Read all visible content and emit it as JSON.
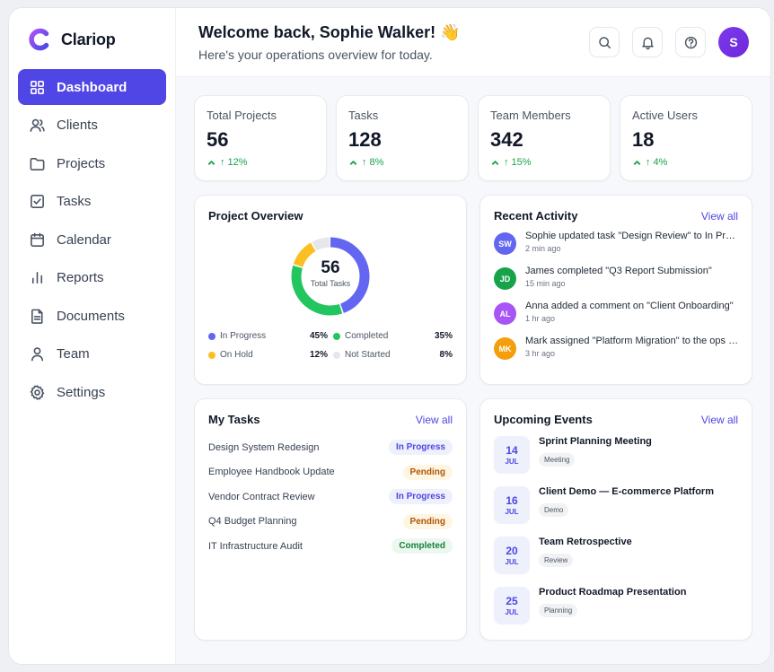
{
  "brand": {
    "name": "Clariop"
  },
  "sidebar": {
    "items": [
      {
        "label": "Dashboard",
        "icon": "grid-icon"
      },
      {
        "label": "Clients",
        "icon": "users-icon"
      },
      {
        "label": "Projects",
        "icon": "folder-icon"
      },
      {
        "label": "Tasks",
        "icon": "checkbox-icon"
      },
      {
        "label": "Calendar",
        "icon": "calendar-icon"
      },
      {
        "label": "Reports",
        "icon": "bar-chart-icon"
      },
      {
        "label": "Documents",
        "icon": "document-icon"
      },
      {
        "label": "Team",
        "icon": "user-icon"
      },
      {
        "label": "Settings",
        "icon": "gear-icon"
      }
    ]
  },
  "header": {
    "title": "Welcome back, Sophie Walker! 👋",
    "subtitle": "Here's your operations overview for today.",
    "avatar_initial": "S"
  },
  "stats": [
    {
      "label": "Total Projects",
      "value": "56",
      "change": "↑ 12%"
    },
    {
      "label": "Tasks",
      "value": "128",
      "change": "↑ 8%"
    },
    {
      "label": "Team Members",
      "value": "342",
      "change": "↑ 15%"
    },
    {
      "label": "Active Users",
      "value": "18",
      "change": "↑ 4%"
    }
  ],
  "overview": {
    "title": "Project Overview",
    "center_value": "56",
    "center_label": "Total Tasks",
    "segments": [
      {
        "label": "In Progress",
        "pct": "45%",
        "value": 45,
        "color": "#6366f1"
      },
      {
        "label": "Completed",
        "pct": "35%",
        "value": 35,
        "color": "#22c55e"
      },
      {
        "label": "On Hold",
        "pct": "12%",
        "value": 12,
        "color": "#fbbf24"
      },
      {
        "label": "Not Started",
        "pct": "8%",
        "value": 8,
        "color": "#e5e7eb"
      }
    ]
  },
  "activity": {
    "title": "Recent Activity",
    "view_all": "View all",
    "items": [
      {
        "initials": "SW",
        "color": "#6366f1",
        "text": "Sophie updated task \"Design Review\" to In Progress",
        "time": "2 min ago"
      },
      {
        "initials": "JD",
        "color": "#16a34a",
        "text": "James completed \"Q3 Report Submission\"",
        "time": "15 min ago"
      },
      {
        "initials": "AL",
        "color": "#a855f7",
        "text": "Anna added a comment on \"Client Onboarding\"",
        "time": "1 hr ago"
      },
      {
        "initials": "MK",
        "color": "#f59e0b",
        "text": "Mark assigned \"Platform Migration\" to the ops team",
        "time": "3 hr ago"
      }
    ]
  },
  "tasks": {
    "title": "My Tasks",
    "view_all": "View all",
    "items": [
      {
        "name": "Design System Redesign",
        "status": "In Progress",
        "kind": "progress"
      },
      {
        "name": "Employee Handbook Update",
        "status": "Pending",
        "kind": "pending"
      },
      {
        "name": "Vendor Contract Review",
        "status": "In Progress",
        "kind": "progress"
      },
      {
        "name": "Q4 Budget Planning",
        "status": "Pending",
        "kind": "pending"
      },
      {
        "name": "IT Infrastructure Audit",
        "status": "Completed",
        "kind": "completed"
      }
    ]
  },
  "events": {
    "title": "Upcoming Events",
    "view_all": "View all",
    "items": [
      {
        "day": "14",
        "month": "JUL",
        "title": "Sprint Planning Meeting",
        "tag": "Meeting"
      },
      {
        "day": "16",
        "month": "JUL",
        "title": "Client Demo — E-commerce Platform",
        "tag": "Demo"
      },
      {
        "day": "20",
        "month": "JUL",
        "title": "Team Retrospective",
        "tag": "Review"
      },
      {
        "day": "25",
        "month": "JUL",
        "title": "Product Roadmap Presentation",
        "tag": "Planning"
      }
    ]
  }
}
